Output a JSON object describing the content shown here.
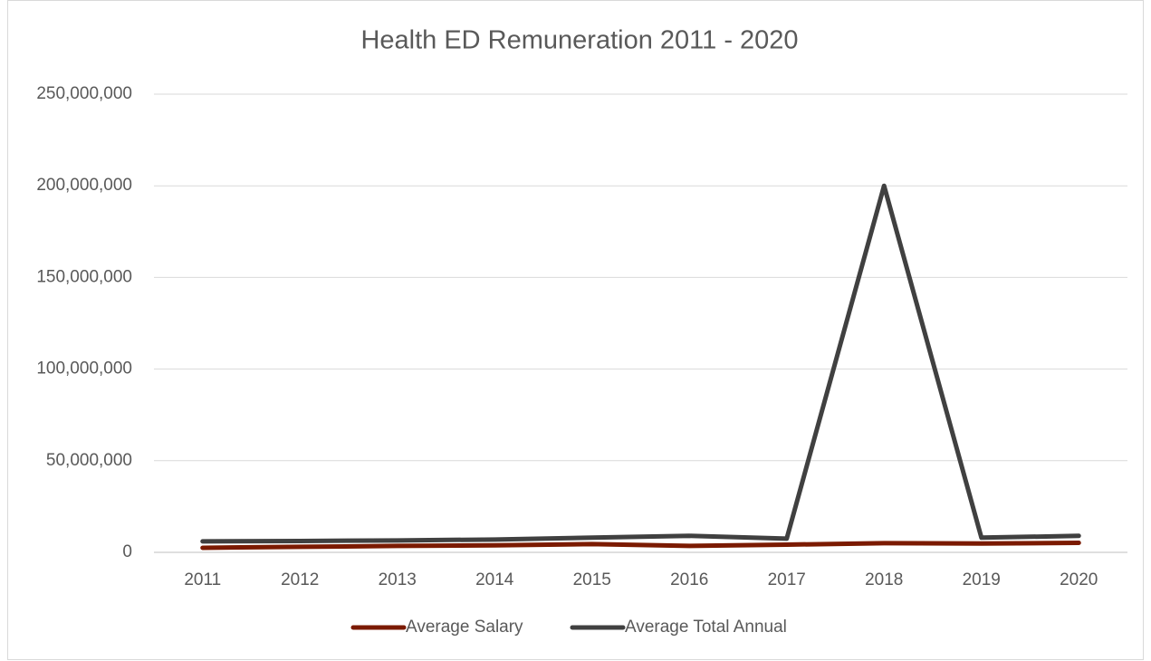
{
  "chart_data": {
    "type": "line",
    "title": "Health ED Remuneration 2011 - 2020",
    "categories": [
      "2011",
      "2012",
      "2013",
      "2014",
      "2015",
      "2016",
      "2017",
      "2018",
      "2019",
      "2020"
    ],
    "series": [
      {
        "name": "Average Salary",
        "color": "#7b1a00",
        "values": [
          2500000,
          3000000,
          3500000,
          3800000,
          4500000,
          3500000,
          4200000,
          5000000,
          4800000,
          5200000
        ]
      },
      {
        "name": "Average Total Annual",
        "color": "#404040",
        "values": [
          6000000,
          6200000,
          6500000,
          7000000,
          8000000,
          9000000,
          7500000,
          200000000,
          8000000,
          9000000
        ]
      }
    ],
    "ylim": [
      0,
      250000000
    ],
    "yticks": [
      0,
      {
        "value": 50000000,
        "label": "50,000,000"
      },
      {
        "value": 100000000,
        "label": "100,000,000"
      },
      {
        "value": 150000000,
        "label": "150,000,000"
      },
      {
        "value": 200000000,
        "label": "200,000,000"
      },
      {
        "value": 250000000,
        "label": "250,000,000"
      }
    ],
    "grid": true,
    "legend": "bottom"
  }
}
